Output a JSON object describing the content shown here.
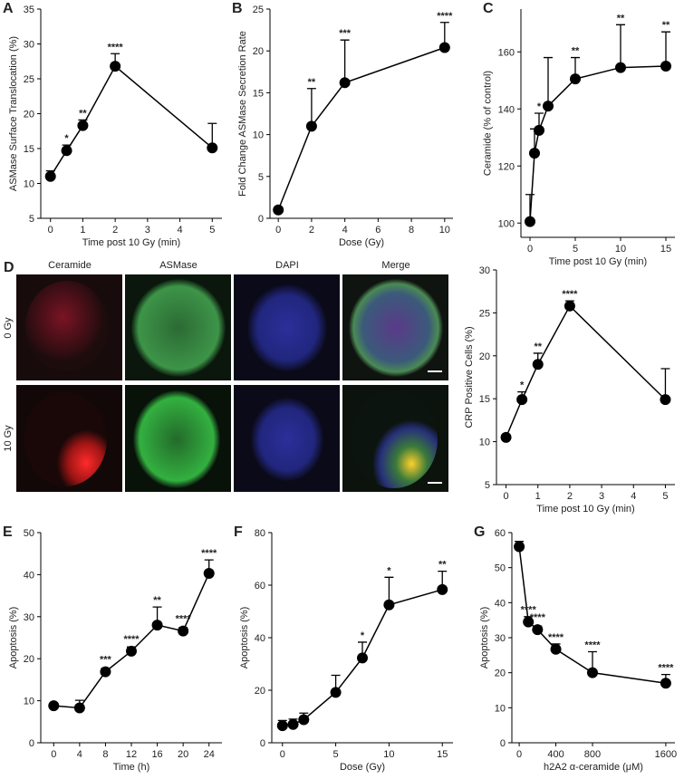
{
  "chart_data": [
    {
      "type": "line",
      "panel": "A",
      "color": "#000000",
      "xlabel": "Time post 10 Gy (min)",
      "ylabel": "ASMase Surface Translocation (%)",
      "x": [
        0,
        0.5,
        1,
        2,
        5
      ],
      "values": [
        11,
        14.7,
        18.3,
        26.8,
        15.1
      ],
      "errors": [
        0.8,
        0.8,
        0.8,
        1.8,
        3.5
      ],
      "annotations": [
        null,
        "*",
        "**",
        "****",
        null
      ],
      "xlim": [
        -0.3,
        5.3
      ],
      "xticks": [
        0,
        1,
        2,
        3,
        4,
        5
      ],
      "ylim": [
        5,
        35
      ],
      "yticks": [
        5,
        10,
        15,
        20,
        25,
        30,
        35
      ]
    },
    {
      "type": "line",
      "panel": "B",
      "color": "#000000",
      "xlabel": "Dose (Gy)",
      "ylabel": "Fold Change ASMase Secretion Rate",
      "x": [
        0,
        2,
        4,
        10
      ],
      "values": [
        1,
        11,
        16.2,
        20.4
      ],
      "errors": [
        0,
        4.5,
        5.1,
        3
      ],
      "annotations": [
        null,
        "**",
        "***",
        "****"
      ],
      "xlim": [
        -0.5,
        10.5
      ],
      "xticks": [
        0,
        2,
        4,
        6,
        8,
        10
      ],
      "ylim": [
        0,
        25
      ],
      "yticks": [
        0,
        5,
        10,
        15,
        20,
        25
      ]
    },
    {
      "type": "line",
      "panel": "C",
      "color": "#000000",
      "xlabel": "Time post 10 Gy (min)",
      "ylabel": "Ceramide (% of control)",
      "x": [
        0,
        0.5,
        1,
        2,
        5,
        10,
        15
      ],
      "values": [
        100.5,
        124.5,
        132.5,
        141,
        150.5,
        154.5,
        155
      ],
      "errors": [
        9.5,
        8.5,
        6,
        17,
        7.5,
        15,
        12
      ],
      "annotations": [
        null,
        null,
        "*",
        null,
        "**",
        "**",
        "**"
      ],
      "xlim": [
        -1,
        16
      ],
      "xticks": [
        0,
        5,
        10,
        15
      ],
      "ylim": [
        95,
        175
      ],
      "yticks": [
        100,
        120,
        140,
        160
      ]
    },
    {
      "type": "line",
      "color": "#000000",
      "xlabel": "Time post 10 Gy (min)",
      "ylabel": "CRP Positive Cells (%)",
      "x": [
        0,
        0.5,
        1,
        2,
        5
      ],
      "values": [
        10.5,
        14.9,
        19,
        25.8,
        14.9
      ],
      "errors": [
        0.3,
        0.9,
        1.3,
        0.6,
        3.6
      ],
      "annotations": [
        null,
        "*",
        "**",
        "****",
        null
      ],
      "xlim": [
        -0.3,
        5.3
      ],
      "xticks": [
        0,
        1,
        2,
        3,
        4,
        5
      ],
      "ylim": [
        5,
        30
      ],
      "yticks": [
        5,
        10,
        15,
        20,
        25,
        30
      ]
    },
    {
      "type": "line",
      "panel": "E",
      "color": "#000000",
      "xlabel": "Time (h)",
      "ylabel": "Apoptosis (%)",
      "x": [
        0,
        4,
        8,
        12,
        16,
        20,
        24
      ],
      "values": [
        8.8,
        8.3,
        16.9,
        21.8,
        28,
        26.6,
        40.3
      ],
      "errors": [
        0.3,
        1.8,
        0.8,
        1,
        4.3,
        0.8,
        3.2
      ],
      "annotations": [
        null,
        null,
        "***",
        "****",
        "**",
        "****",
        "****"
      ],
      "xlim": [
        -2,
        26
      ],
      "xticks": [
        0,
        4,
        8,
        12,
        16,
        20,
        24
      ],
      "ylim": [
        0,
        50
      ],
      "yticks": [
        0,
        10,
        20,
        30,
        40,
        50
      ]
    },
    {
      "type": "line",
      "panel": "F",
      "color": "#000000",
      "xlabel": "Dose (Gy)",
      "ylabel": "Apoptosis (%)",
      "x": [
        0,
        1,
        2,
        5,
        7.5,
        10,
        15
      ],
      "values": [
        6.5,
        7,
        8.8,
        19.2,
        32.3,
        52.5,
        58.3
      ],
      "errors": [
        2,
        2,
        2.5,
        6.5,
        6,
        10.5,
        7
      ],
      "annotations": [
        null,
        null,
        null,
        null,
        "*",
        "*",
        "**"
      ],
      "xlim": [
        -1,
        16
      ],
      "xticks": [
        0,
        5,
        10,
        15
      ],
      "ylim": [
        0,
        80
      ],
      "yticks": [
        0,
        20,
        40,
        60,
        80
      ]
    },
    {
      "type": "line",
      "panel": "G",
      "color": "#000000",
      "xlabel": "h2A2 α-ceramide (μM)",
      "ylabel": "Apoptosis (%)",
      "x": [
        0,
        100,
        200,
        400,
        800,
        1600
      ],
      "values": [
        56,
        34.5,
        32.3,
        26.7,
        20,
        17
      ],
      "errors": [
        1.5,
        1.5,
        1,
        1.5,
        6,
        2.5
      ],
      "annotations": [
        null,
        "****",
        "****",
        "****",
        "****",
        "****"
      ],
      "xlim": [
        -80,
        1700
      ],
      "xticks": [
        0,
        400,
        800,
        1600
      ],
      "ylim": [
        0,
        60
      ],
      "yticks": [
        0,
        10,
        20,
        30,
        40,
        50,
        60
      ]
    }
  ],
  "micrographs": {
    "panel": "D",
    "columns": [
      "Ceramide",
      "ASMase",
      "DAPI",
      "Merge"
    ],
    "rows": [
      "0 Gy",
      "10 Gy"
    ]
  }
}
